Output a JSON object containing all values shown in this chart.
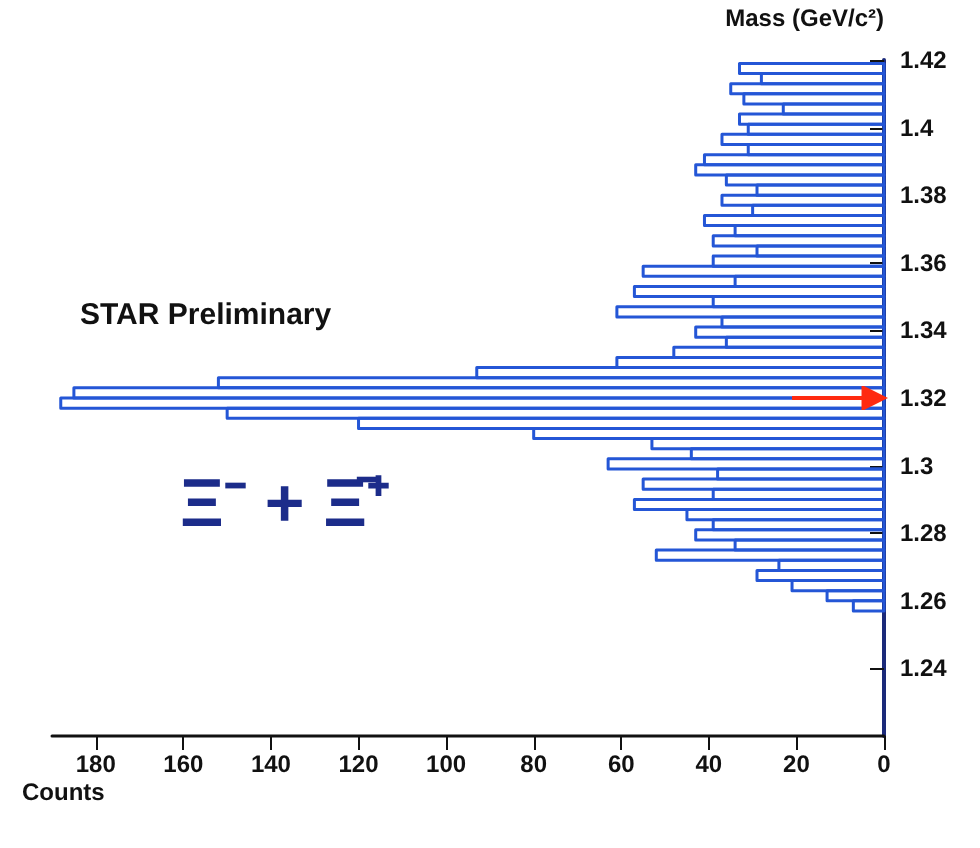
{
  "chart_data": {
    "type": "histogram",
    "orientation": "horizontal",
    "xlabel": "Counts",
    "ylabel": "Mass (GeV/c²)",
    "annotations": [
      "STAR Preliminary",
      "Ξ⁻ + Ξ̄⁺"
    ],
    "bins": [
      1.257,
      1.26,
      1.263,
      1.266,
      1.269,
      1.272,
      1.275,
      1.278,
      1.281,
      1.284,
      1.287,
      1.29,
      1.293,
      1.296,
      1.299,
      1.302,
      1.305,
      1.308,
      1.311,
      1.314,
      1.317,
      1.32,
      1.323,
      1.326,
      1.329,
      1.332,
      1.335,
      1.338,
      1.341,
      1.344,
      1.347,
      1.35,
      1.353,
      1.356,
      1.359,
      1.362,
      1.365,
      1.368,
      1.371,
      1.374,
      1.377,
      1.38,
      1.383,
      1.386,
      1.389,
      1.392,
      1.395,
      1.398,
      1.401,
      1.404,
      1.407,
      1.41,
      1.413,
      1.416,
      1.419
    ],
    "values": [
      7,
      13,
      21,
      29,
      24,
      52,
      34,
      43,
      39,
      45,
      57,
      39,
      55,
      38,
      63,
      44,
      53,
      80,
      120,
      150,
      188,
      185,
      152,
      93,
      61,
      48,
      36,
      43,
      37,
      61,
      39,
      57,
      34,
      55,
      39,
      29,
      39,
      34,
      41,
      30,
      37,
      29,
      36,
      43,
      41,
      31,
      37,
      31,
      33,
      23,
      32,
      35,
      28,
      33
    ],
    "color": "#2456d6",
    "xlim": [
      190,
      0
    ],
    "xticks": [
      0,
      20,
      40,
      60,
      80,
      100,
      120,
      140,
      160,
      180
    ],
    "ylim": [
      1.22,
      1.42
    ],
    "yticks": [
      1.24,
      1.26,
      1.28,
      1.3,
      1.32,
      1.34,
      1.36,
      1.38,
      1.4,
      1.42
    ],
    "ref_lines": [
      {
        "axis": "y",
        "value": 1.32,
        "color": "#ff2a10"
      }
    ],
    "grid": false
  }
}
